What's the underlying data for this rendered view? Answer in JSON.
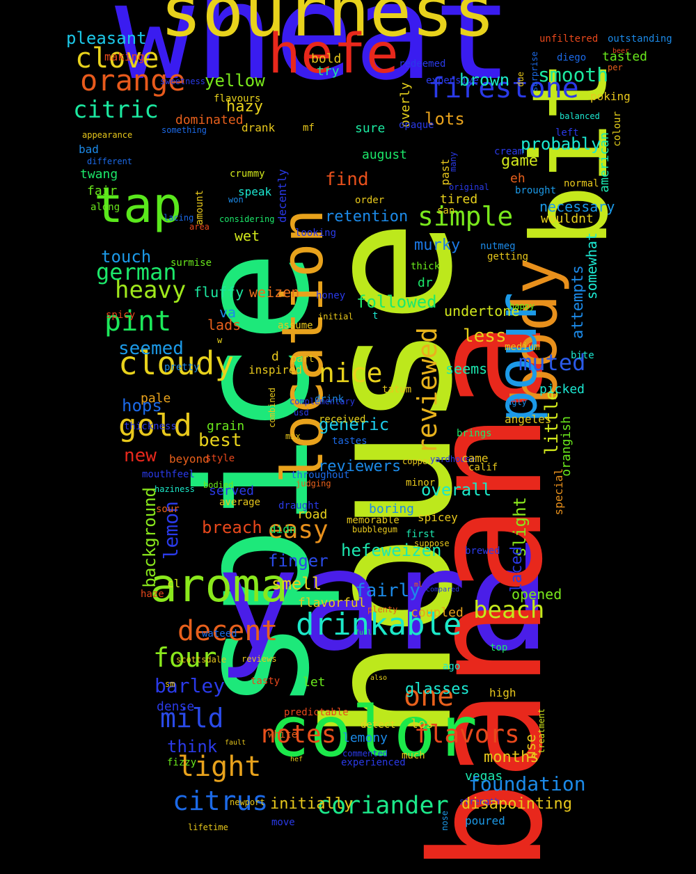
{
  "words": [
    {
      "text": "wheat",
      "color": "#3a1cf0"
    },
    {
      "text": "house",
      "color": "#bde81c"
    },
    {
      "text": "spice",
      "color": "#1de87a"
    },
    {
      "text": "yard",
      "color": "#4a1ee8"
    },
    {
      "text": "banana",
      "color": "#e8281c"
    },
    {
      "text": "sourness",
      "color": "#e8d21c"
    },
    {
      "text": "bit",
      "color": "#c5e81c"
    },
    {
      "text": "color",
      "color": "#1ce84a"
    },
    {
      "text": "location",
      "color": "#e8a21c"
    },
    {
      "text": "body",
      "color": "#e8901c"
    },
    {
      "text": "pour",
      "color": "#1c9ae8"
    },
    {
      "text": "hefe",
      "color": "#e8281c"
    },
    {
      "text": "aroma",
      "color": "#8ae81c"
    },
    {
      "text": "tap",
      "color": "#5ae81c"
    },
    {
      "text": "drinkable",
      "color": "#1ce8c8"
    },
    {
      "text": "firestone",
      "color": "#2a3ae8"
    },
    {
      "text": "orange",
      "color": "#e85a1c"
    },
    {
      "text": "cloudy",
      "color": "#e8d21c"
    },
    {
      "text": "reviewed",
      "color": "#e8b21c"
    },
    {
      "text": "decent",
      "color": "#e8601c"
    },
    {
      "text": "coriander",
      "color": "#1ce88a"
    },
    {
      "text": "light",
      "color": "#e8a21c"
    },
    {
      "text": "flavors",
      "color": "#e8481c"
    },
    {
      "text": "nice",
      "color": "#e8d21c"
    },
    {
      "text": "one",
      "color": "#e8601c"
    },
    {
      "text": "notes",
      "color": "#e8501c"
    },
    {
      "text": "citrus",
      "color": "#1c6ae8"
    },
    {
      "text": "mild",
      "color": "#2a4ae8"
    },
    {
      "text": "simple",
      "color": "#7ae81c"
    },
    {
      "text": "four",
      "color": "#8ae81c"
    },
    {
      "text": "pint",
      "color": "#1ce85a"
    },
    {
      "text": "gold",
      "color": "#e8c81c"
    },
    {
      "text": "clove",
      "color": "#e8d21c"
    },
    {
      "text": "citric",
      "color": "#1ce8a0"
    },
    {
      "text": "german",
      "color": "#1ce86a"
    },
    {
      "text": "heavy",
      "color": "#a0e81c"
    },
    {
      "text": "beach",
      "color": "#c5e81c"
    },
    {
      "text": "muted",
      "color": "#2a5ae8"
    },
    {
      "text": "easy",
      "color": "#e8901c"
    },
    {
      "text": "smooth",
      "color": "#1ce8a0"
    },
    {
      "text": "lemon",
      "color": "#2a3ae8"
    },
    {
      "text": "little",
      "color": "#d2e81c"
    },
    {
      "text": "pleasant",
      "color": "#1cc8e8"
    },
    {
      "text": "probably",
      "color": "#1ce8d2"
    },
    {
      "text": "brown",
      "color": "#1ce8c8"
    },
    {
      "text": "seemed",
      "color": "#1c9ae8"
    },
    {
      "text": "barley",
      "color": "#2a3ae8"
    },
    {
      "text": "yellow",
      "color": "#7ae81c"
    },
    {
      "text": "hazy",
      "color": "#e8d21c"
    },
    {
      "text": "lots",
      "color": "#e8a21c"
    },
    {
      "text": "find",
      "color": "#e8501c"
    },
    {
      "text": "touch",
      "color": "#1c9ae8"
    },
    {
      "text": "retention",
      "color": "#1c8ae8"
    },
    {
      "text": "murky",
      "color": "#1c7ae8"
    },
    {
      "text": "followed",
      "color": "#1ce86a"
    },
    {
      "text": "fluffy",
      "color": "#1ce8a0"
    },
    {
      "text": "weizen",
      "color": "#e8701c"
    },
    {
      "text": "lads",
      "color": "#e8601c"
    },
    {
      "text": "va",
      "color": "#1c8ae8"
    },
    {
      "text": "less",
      "color": "#e8d21c"
    },
    {
      "text": "seems",
      "color": "#1ce8b0"
    },
    {
      "text": "undertone",
      "color": "#d2e81c"
    },
    {
      "text": "generic",
      "color": "#1cc8e8"
    },
    {
      "text": "received",
      "color": "#e8d21c"
    },
    {
      "text": "reviewers",
      "color": "#1c8ae8"
    },
    {
      "text": "overall",
      "color": "#1ce8c8"
    },
    {
      "text": "hefeweizen",
      "color": "#1ce8b0"
    },
    {
      "text": "boring",
      "color": "#1c8ae8"
    },
    {
      "text": "breach",
      "color": "#e8481c"
    },
    {
      "text": "finger",
      "color": "#2a4ae8"
    },
    {
      "text": "smell",
      "color": "#e8d21c"
    },
    {
      "text": "fairly",
      "color": "#1c8ae8"
    },
    {
      "text": "coupled",
      "color": "#e8a21c"
    },
    {
      "text": "served",
      "color": "#2a3ae8"
    },
    {
      "text": "best",
      "color": "#e8d21c"
    },
    {
      "text": "new",
      "color": "#e8281c"
    },
    {
      "text": "hops",
      "color": "#1c6ae8"
    },
    {
      "text": "background",
      "color": "#8ae81c"
    },
    {
      "text": "slight",
      "color": "#8ae81c"
    },
    {
      "text": "laced",
      "color": "#2a3ae8"
    },
    {
      "text": "opened",
      "color": "#7ae81c"
    },
    {
      "text": "picked",
      "color": "#1ce8d2"
    },
    {
      "text": "orangish",
      "color": "#6ae81c"
    },
    {
      "text": "special",
      "color": "#e8901c"
    },
    {
      "text": "somewhat",
      "color": "#1ce8d2"
    },
    {
      "text": "attempts",
      "color": "#1c8ae8"
    },
    {
      "text": "necessary",
      "color": "#1c9ae8"
    },
    {
      "text": "wouldnt",
      "color": "#e8d21c"
    },
    {
      "text": "game",
      "color": "#d2e81c"
    },
    {
      "text": "eh",
      "color": "#e8601c"
    },
    {
      "text": "brought",
      "color": "#1c9ae8"
    },
    {
      "text": "tired",
      "color": "#e8d21c"
    },
    {
      "text": "nutmeg",
      "color": "#1c8ae8"
    },
    {
      "text": "getting",
      "color": "#e8c81c"
    },
    {
      "text": "thick",
      "color": "#6ae81c"
    },
    {
      "text": "dr",
      "color": "#1ce86a"
    },
    {
      "text": "d",
      "color": "#e8c81c"
    },
    {
      "text": "t",
      "color": "#1ce8d2"
    },
    {
      "text": "wet",
      "color": "#d2e81c"
    },
    {
      "text": "august",
      "color": "#1ce86a"
    },
    {
      "text": "past",
      "color": "#e8c81c"
    },
    {
      "text": "sure",
      "color": "#1ce8a0"
    },
    {
      "text": "overly",
      "color": "#e8d21c"
    },
    {
      "text": "bold",
      "color": "#e8c81c"
    },
    {
      "text": "try",
      "color": "#1ce8a0"
    },
    {
      "text": "redeemed",
      "color": "#2a3ae8"
    },
    {
      "text": "expensive",
      "color": "#2a3ae8"
    },
    {
      "text": "mf",
      "color": "#e8c81c"
    },
    {
      "text": "drank",
      "color": "#e8c81c"
    },
    {
      "text": "dominated",
      "color": "#e8601c"
    },
    {
      "text": "bad",
      "color": "#1c8ae8"
    },
    {
      "text": "twang",
      "color": "#1ce86a"
    },
    {
      "text": "fair",
      "color": "#6ae81c"
    },
    {
      "text": "along",
      "color": "#6ae81c"
    },
    {
      "text": "making",
      "color": "#e8481c"
    },
    {
      "text": "flavours",
      "color": "#e8d21c"
    },
    {
      "text": "sweetness",
      "color": "#2a3ae8"
    },
    {
      "text": "something",
      "color": "#1c6ae8"
    },
    {
      "text": "appearance",
      "color": "#e8c81c"
    },
    {
      "text": "different",
      "color": "#1c6ae8"
    },
    {
      "text": "lacing",
      "color": "#1c6ae8"
    },
    {
      "text": "surmise",
      "color": "#6ae81c"
    },
    {
      "text": "area",
      "color": "#e8481c"
    },
    {
      "text": "amount",
      "color": "#e8c81c"
    },
    {
      "text": "crummy",
      "color": "#d2e81c"
    },
    {
      "text": "speak",
      "color": "#1ce8d2"
    },
    {
      "text": "won",
      "color": "#1c8ae8"
    },
    {
      "text": "decently",
      "color": "#2a3ae8"
    },
    {
      "text": "looking",
      "color": "#2a3ae8"
    },
    {
      "text": "spicy",
      "color": "#e8481c"
    },
    {
      "text": "considering",
      "color": "#1ce86a"
    },
    {
      "text": "w",
      "color": "#e8d21c"
    },
    {
      "text": "assume",
      "color": "#e8c81c"
    },
    {
      "text": "initial",
      "color": "#e8c81c"
    },
    {
      "text": "honey",
      "color": "#2a3ae8"
    },
    {
      "text": "part",
      "color": "#e8c81c"
    },
    {
      "text": "pretty",
      "color": "#1c8ae8"
    },
    {
      "text": "inspired",
      "color": "#e8c81c"
    },
    {
      "text": "pale",
      "color": "#e8a21c"
    },
    {
      "text": "thickness",
      "color": "#2a3ae8"
    },
    {
      "text": "grain",
      "color": "#6ae81c"
    },
    {
      "text": "beyond",
      "color": "#e8601c"
    },
    {
      "text": "style",
      "color": "#e8481c"
    },
    {
      "text": "mouthfeel",
      "color": "#2a3ae8"
    },
    {
      "text": "haziness",
      "color": "#1ce8c8"
    },
    {
      "text": "bodied",
      "color": "#6ae81c"
    },
    {
      "text": "average",
      "color": "#e8c81c"
    },
    {
      "text": "sour",
      "color": "#e8601c"
    },
    {
      "text": "cl",
      "color": "#d2e81c"
    },
    {
      "text": "haze",
      "color": "#e8481c"
    },
    {
      "text": "combined",
      "color": "#e8c81c"
    },
    {
      "text": "complementary",
      "color": "#2a3ae8"
    },
    {
      "text": "drink",
      "color": "#1c8ae8"
    },
    {
      "text": "usd",
      "color": "#2a3ae8"
    },
    {
      "text": "mix",
      "color": "#e8c81c"
    },
    {
      "text": "tastes",
      "color": "#1c6ae8"
    },
    {
      "text": "throughout",
      "color": "#1c6ae8"
    },
    {
      "text": "judging",
      "color": "#e8601c"
    },
    {
      "text": "draught",
      "color": "#2a3ae8"
    },
    {
      "text": "road",
      "color": "#e8d21c"
    },
    {
      "text": "didn",
      "color": "#1ce86a"
    },
    {
      "text": "memorable",
      "color": "#e8c81c"
    },
    {
      "text": "minor",
      "color": "#e8c81c"
    },
    {
      "text": "spicey",
      "color": "#e8c81c"
    },
    {
      "text": "first",
      "color": "#1ce8b0"
    },
    {
      "text": "suppose",
      "color": "#e8c81c"
    },
    {
      "text": "brewed",
      "color": "#2a3ae8"
    },
    {
      "text": "copper",
      "color": "#e8c81c"
    },
    {
      "text": "yardhouse",
      "color": "#2a3ae8"
    },
    {
      "text": "came",
      "color": "#e8c81c"
    },
    {
      "text": "calif",
      "color": "#e8c81c"
    },
    {
      "text": "brings",
      "color": "#1ce86a"
    },
    {
      "text": "tatum",
      "color": "#e8c81c"
    },
    {
      "text": "angeles",
      "color": "#e8c81c"
    },
    {
      "text": "ugly",
      "color": "#1c8ae8"
    },
    {
      "text": "medium",
      "color": "#e8c81c"
    },
    {
      "text": "bite",
      "color": "#1ce8d2"
    },
    {
      "text": "happy",
      "color": "#6ae81c"
    },
    {
      "text": "ml",
      "color": "#e8601c"
    },
    {
      "text": "compared",
      "color": "#2a3ae8"
    },
    {
      "text": "plenty",
      "color": "#e8601c"
    },
    {
      "text": "flavorful",
      "color": "#e8c81c"
    },
    {
      "text": "full",
      "color": "#1ce86a"
    },
    {
      "text": "wateed",
      "color": "#1c6ae8"
    },
    {
      "text": "reviews",
      "color": "#e8c81c"
    },
    {
      "text": "scottsdale",
      "color": "#e8c81c"
    },
    {
      "text": "sm",
      "color": "#e8c81c"
    },
    {
      "text": "tasty",
      "color": "#e8481c"
    },
    {
      "text": "let",
      "color": "#6ae81c"
    },
    {
      "text": "dense",
      "color": "#2a3ae8"
    },
    {
      "text": "glasses",
      "color": "#1ce8d2"
    },
    {
      "text": "also",
      "color": "#e8d21c"
    },
    {
      "text": "ago",
      "color": "#1ce8d2"
    },
    {
      "text": "high",
      "color": "#e8c81c"
    },
    {
      "text": "top",
      "color": "#1ce86a"
    },
    {
      "text": "use",
      "color": "#e8c81c"
    },
    {
      "text": "treatment",
      "color": "#d2e81c"
    },
    {
      "text": "predictable",
      "color": "#e8481c"
    },
    {
      "text": "los",
      "color": "#e8c81c"
    },
    {
      "text": "detect",
      "color": "#e8d21c"
    },
    {
      "text": "white",
      "color": "#e8601c"
    },
    {
      "text": "fault",
      "color": "#e8c81c"
    },
    {
      "text": "think",
      "color": "#2a3ae8"
    },
    {
      "text": "fizzy",
      "color": "#6ae81c"
    },
    {
      "text": "lemony",
      "color": "#1c8ae8"
    },
    {
      "text": "commented",
      "color": "#2a3ae8"
    },
    {
      "text": "hef",
      "color": "#e8c81c"
    },
    {
      "text": "experienced",
      "color": "#2a3ae8"
    },
    {
      "text": "much",
      "color": "#e8c81c"
    },
    {
      "text": "months",
      "color": "#e8c81c"
    },
    {
      "text": "vegas",
      "color": "#1ce8b0"
    },
    {
      "text": "foundation",
      "color": "#1c8ae8"
    },
    {
      "text": "nose",
      "color": "#1c9ae8"
    },
    {
      "text": "strength",
      "color": "#2a3ae8"
    },
    {
      "text": "disapointing",
      "color": "#e8c81c"
    },
    {
      "text": "poured",
      "color": "#1c9ae8"
    },
    {
      "text": "initially",
      "color": "#e8c81c"
    },
    {
      "text": "move",
      "color": "#2a3ae8"
    },
    {
      "text": "newport",
      "color": "#e8c81c"
    },
    {
      "text": "lifetime",
      "color": "#e8c81c"
    },
    {
      "text": "unfiltered",
      "color": "#e8481c"
    },
    {
      "text": "outstanding",
      "color": "#1c8ae8"
    },
    {
      "text": "beer",
      "color": "#e8481c"
    },
    {
      "text": "tasted",
      "color": "#6ae81c"
    },
    {
      "text": "per",
      "color": "#e8601c"
    },
    {
      "text": "surprise",
      "color": "#1c6ae8"
    },
    {
      "text": "due",
      "color": "#e8c81c"
    },
    {
      "text": "diego",
      "color": "#1c6ae8"
    },
    {
      "text": "poking",
      "color": "#e8c81c"
    },
    {
      "text": "balanced",
      "color": "#1ce8d2"
    },
    {
      "text": "left",
      "color": "#2a3ae8"
    },
    {
      "text": "colour",
      "color": "#e8d21c"
    },
    {
      "text": "american",
      "color": "#1ce8b0"
    },
    {
      "text": "opaque",
      "color": "#2a3ae8"
    },
    {
      "text": "cream",
      "color": "#2a3ae8"
    },
    {
      "text": "many",
      "color": "#2a3ae8"
    },
    {
      "text": "original",
      "color": "#2a3ae8"
    },
    {
      "text": "normal",
      "color": "#e8c81c"
    },
    {
      "text": "order",
      "color": "#e8c81c"
    },
    {
      "text": "san",
      "color": "#e8c81c"
    },
    {
      "text": "bubblegum",
      "color": "#e8c81c"
    },
    {
      "text": "far",
      "color": "#e8c81c"
    }
  ]
}
